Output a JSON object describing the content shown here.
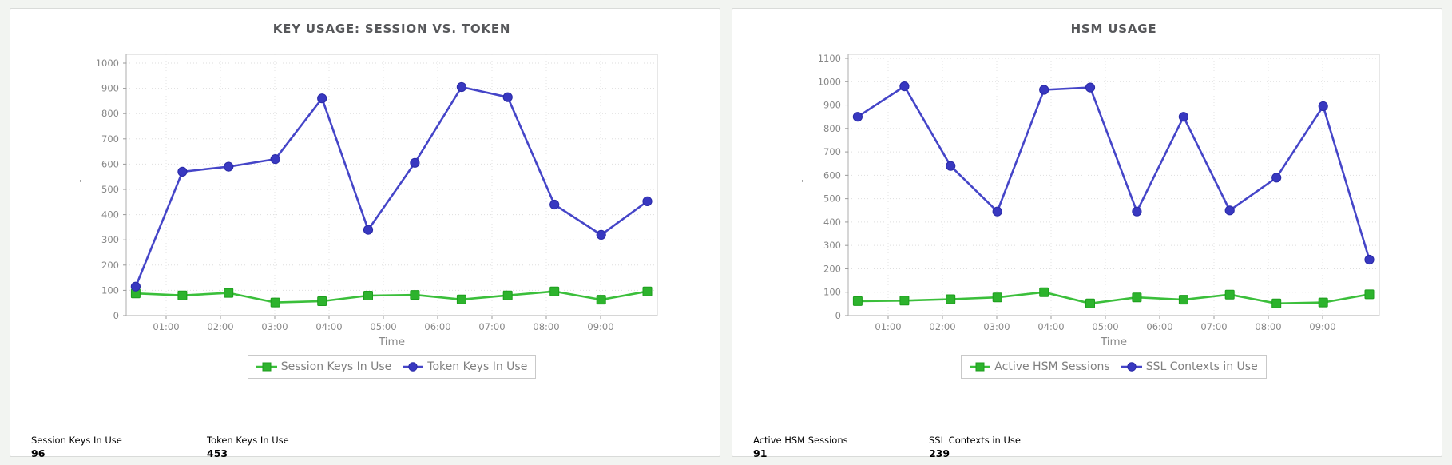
{
  "page": {
    "background": "#f2f4f1",
    "panel_border": "#d9dbd9"
  },
  "chart_data": [
    {
      "type": "line",
      "title": "KEY USAGE: SESSION VS. TOKEN",
      "xlabel": "Time",
      "x_tick_labels": [
        "01:00",
        "02:00",
        "03:00",
        "04:00",
        "05:00",
        "06:00",
        "07:00",
        "08:00",
        "09:00"
      ],
      "x_hours": [
        0.44,
        1.3,
        2.15,
        3.01,
        3.87,
        4.72,
        5.58,
        6.44,
        7.29,
        8.15,
        9.01,
        9.86
      ],
      "ylim": [
        0,
        1000
      ],
      "y_tick_step": 100,
      "y_axis_mark": "'",
      "grid": true,
      "legend_position": "bottom",
      "series": [
        {
          "name": "Session Keys In Use",
          "color": "#3bbf3b",
          "marker_fill": "#2db32d",
          "marker_edge": "#1d9e1d",
          "marker": "square",
          "values": [
            88,
            80,
            90,
            52,
            57,
            79,
            82,
            64,
            80,
            96,
            63,
            96
          ]
        },
        {
          "name": "Token Keys In Use",
          "color": "#4545c8",
          "marker_fill": "#3838c0",
          "marker_edge": "#2a2aa8",
          "marker": "circle",
          "values": [
            115,
            570,
            590,
            620,
            860,
            340,
            605,
            905,
            865,
            440,
            320,
            453
          ]
        }
      ],
      "summary": [
        {
          "label": "Session Keys In Use",
          "value": "96"
        },
        {
          "label": "Token Keys In Use",
          "value": "453"
        }
      ]
    },
    {
      "type": "line",
      "title": "HSM USAGE",
      "xlabel": "Time",
      "x_tick_labels": [
        "01:00",
        "02:00",
        "03:00",
        "04:00",
        "05:00",
        "06:00",
        "07:00",
        "08:00",
        "09:00"
      ],
      "x_hours": [
        0.44,
        1.3,
        2.15,
        3.01,
        3.87,
        4.72,
        5.58,
        6.44,
        7.29,
        8.15,
        9.01,
        9.86
      ],
      "ylim": [
        0,
        1100
      ],
      "y_tick_step": 100,
      "y_axis_mark": "'",
      "grid": true,
      "legend_position": "bottom",
      "series": [
        {
          "name": "Active HSM Sessions",
          "color": "#3bbf3b",
          "marker_fill": "#2db32d",
          "marker_edge": "#1d9e1d",
          "marker": "square",
          "values": [
            62,
            64,
            70,
            78,
            100,
            52,
            78,
            68,
            90,
            52,
            56,
            91
          ]
        },
        {
          "name": "SSL Contexts in Use",
          "color": "#4545c8",
          "marker_fill": "#3838c0",
          "marker_edge": "#2a2aa8",
          "marker": "circle",
          "values": [
            850,
            980,
            640,
            445,
            965,
            975,
            445,
            850,
            450,
            590,
            895,
            239
          ]
        }
      ],
      "summary": [
        {
          "label": "Active HSM Sessions",
          "value": "91"
        },
        {
          "label": "SSL Contexts in Use",
          "value": "239"
        }
      ]
    }
  ]
}
